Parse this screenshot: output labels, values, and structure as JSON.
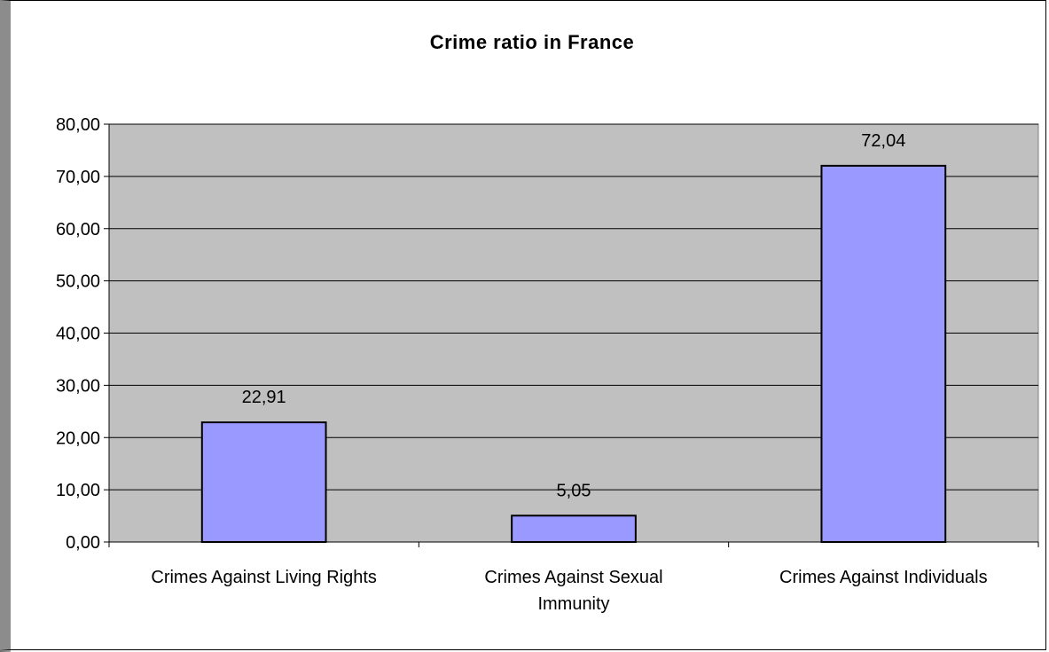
{
  "chart_data": {
    "type": "bar",
    "title": "Crime ratio in France",
    "categories": [
      [
        "Crimes Against Living Rights"
      ],
      [
        "Crimes Against Sexual",
        "Immunity"
      ],
      [
        "Crimes Against Individuals"
      ]
    ],
    "values": [
      22.91,
      5.05,
      72.04
    ],
    "data_labels": [
      "22,91",
      "5,05",
      "72,04"
    ],
    "ylim": [
      0,
      80
    ],
    "yticks": [
      0,
      10,
      20,
      30,
      40,
      50,
      60,
      70,
      80
    ],
    "ytick_labels": [
      "0,00",
      "10,00",
      "20,00",
      "30,00",
      "40,00",
      "50,00",
      "60,00",
      "70,00",
      "80,00"
    ],
    "xlabel": "",
    "ylabel": "",
    "grid": true,
    "legend": "none",
    "colors": {
      "bar_fill": "#9999ff",
      "bar_stroke": "#000000",
      "plot_background": "#c0c0c0",
      "gridline": "#000000"
    }
  }
}
